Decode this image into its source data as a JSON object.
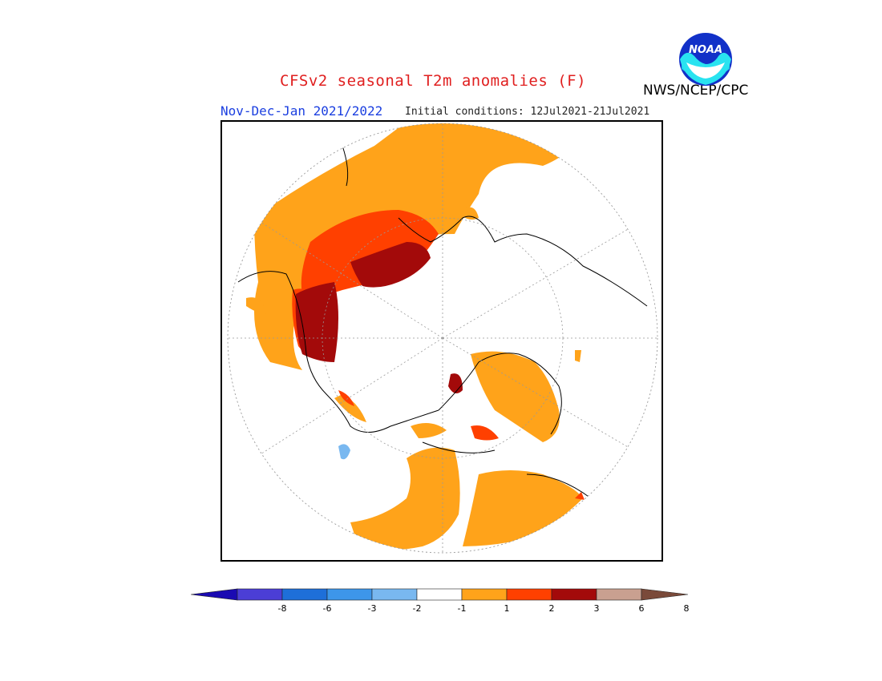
{
  "title": "CFSv2 seasonal T2m anomalies (F)",
  "period": "Nov-Dec-Jan 2021/2022",
  "initial_conditions": "Initial conditions: 12Jul2021-21Jul2021",
  "agency": "NWS/NCEP/CPC",
  "logo": {
    "text": "NOAA",
    "icon": "noaa-logo"
  },
  "map": {
    "projection": "north-polar-stereographic",
    "land_color": "#ffffff",
    "coastline_color": "#000000"
  },
  "legend": {
    "labels": [
      "-8",
      "-6",
      "-3",
      "-2",
      "-1",
      "1",
      "2",
      "3",
      "6",
      "8"
    ],
    "colors": [
      "#1a0ab2",
      "#4b3ed6",
      "#1e6fd9",
      "#3d96ea",
      "#79b8f0",
      "#ffffff",
      "#ffa31a",
      "#ff4000",
      "#a30a0a",
      "#c9a090",
      "#7a4a3a"
    ]
  }
}
